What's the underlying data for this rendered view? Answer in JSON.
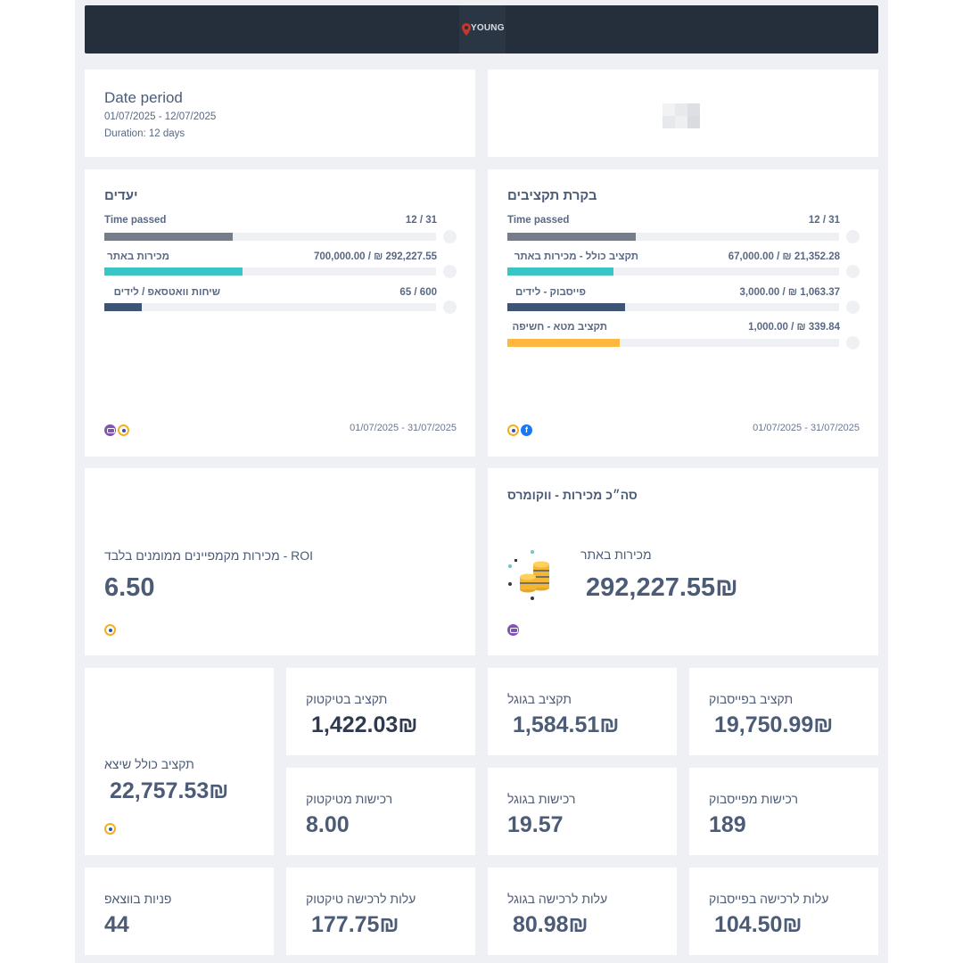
{
  "header": {
    "brand": "YOUNG"
  },
  "date_period": {
    "title": "Date period",
    "range": "01/07/2025 - 12/07/2025",
    "duration": "Duration:  12 days"
  },
  "goals": {
    "title": "יעדים",
    "rows": [
      {
        "label": "Time passed",
        "value": "12 / 31",
        "progress": 0.387,
        "color": "#757d8a"
      },
      {
        "label": "מכירות באתר",
        "value": "700,000.00 / ₪ 292,227.55",
        "progress": 0.417,
        "color": "#3bc4c4"
      },
      {
        "label": "שיחות וואטסאפ / לידים",
        "value": "65 / 600",
        "progress": 0.108,
        "color": "#3d5575"
      }
    ],
    "date_range": "01/07/2025 - 31/07/2025"
  },
  "budget": {
    "title": "בקרת תקציבים",
    "rows": [
      {
        "label": "Time passed",
        "value": "12 / 31",
        "progress": 0.387,
        "color": "#757d8a"
      },
      {
        "label": "תקציב כולל - מכירות באתר",
        "value": "67,000.00 / ₪ 21,352.28",
        "progress": 0.319,
        "color": "#3bc4c4"
      },
      {
        "label": "פייסבוק - לידים",
        "value": "3,000.00 / ₪ 1,063.37",
        "progress": 0.354,
        "color": "#3d5575"
      },
      {
        "label": "תקציב מטא - חשיפה",
        "value": "1,000.00 / ₪ 339.84",
        "progress": 0.34,
        "color": "#ffb740"
      }
    ],
    "date_range": "01/07/2025 - 31/07/2025"
  },
  "roi": {
    "title": "ROI - מכירות מקמפיינים ממומנים בלבד",
    "value": "6.50"
  },
  "woo_sales": {
    "title": "סה״כ מכירות - ווקומרס",
    "label": "מכירות באתר",
    "value": "292,227.55₪"
  },
  "total_spent": {
    "label": "תקציב כולל שיצא",
    "value": "22,757.53₪"
  },
  "kpis": {
    "tiktok_budget": {
      "label": "תקציב בטיקטוק",
      "value": "1,422.03₪"
    },
    "google_budget": {
      "label": "תקציב בגוגל",
      "value": "1,584.51₪"
    },
    "facebook_budget": {
      "label": "תקציב בפייסבוק",
      "value": "19,750.99₪"
    },
    "tiktok_purchases": {
      "label": "רכישות מטיקטוק",
      "value": "8.00"
    },
    "google_purchases": {
      "label": "רכישות בגוגל",
      "value": "19.57"
    },
    "facebook_purchases": {
      "label": "רכישות מפייסבוק",
      "value": "189"
    },
    "whatsapp_leads": {
      "label": "פניות בווצאפ",
      "value": "44"
    },
    "tiktok_cpa": {
      "label": "עלות לרכישה טיקטוק",
      "value": "177.75₪"
    },
    "google_cpa": {
      "label": "עלות לרכישה בגוגל",
      "value": "80.98₪"
    },
    "facebook_cpa": {
      "label": "עלות לרכישה בפייסבוק",
      "value": "104.50₪"
    }
  },
  "icons": [
    "google-ads-icon",
    "woocommerce-icon",
    "facebook-icon",
    "coins-icon",
    "location-pin-icon"
  ]
}
